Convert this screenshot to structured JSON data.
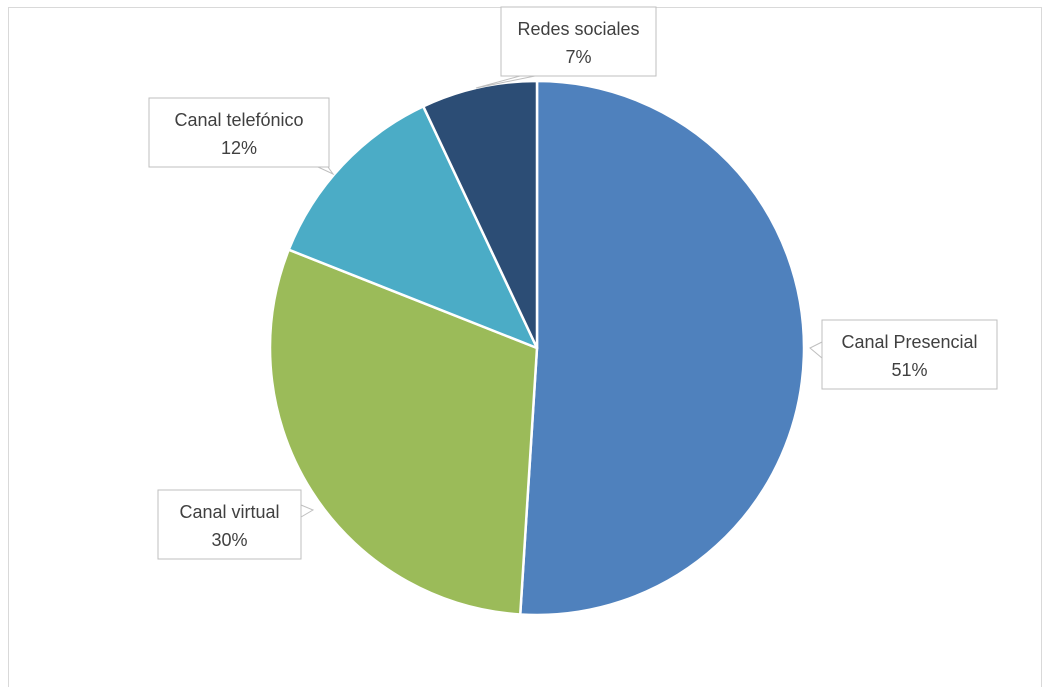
{
  "chart_data": {
    "type": "pie",
    "categories": [
      "Canal Presencial",
      "Canal virtual",
      "Canal telefónico",
      "Redes sociales"
    ],
    "values": [
      51,
      30,
      12,
      7
    ],
    "value_labels": [
      "51%",
      "30%",
      "12%",
      "7%"
    ],
    "colors": [
      "#4f81bd",
      "#9bbb59",
      "#4bacc6",
      "#2c4d75"
    ],
    "label_style": "callouts",
    "legend": "none"
  }
}
